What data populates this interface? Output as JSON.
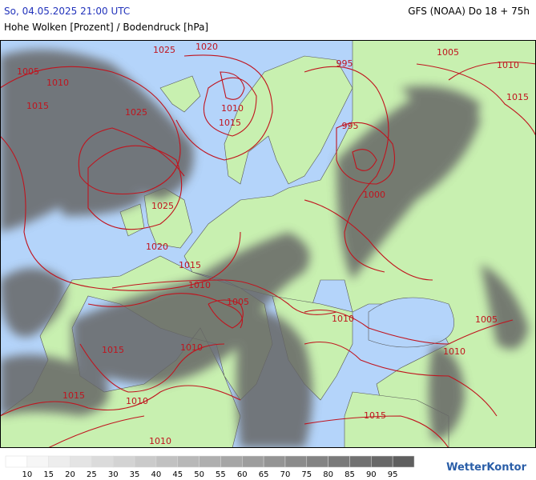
{
  "header": {
    "datetime": "So, 04.05.2025 21:00 UTC",
    "model": "GFS (NOAA) Do 18 + 75h",
    "subtitle": "Hohe Wolken [Prozent] / Bodendruck [hPa]"
  },
  "map": {
    "isobar_labels": [
      "1025",
      "1020",
      "1005",
      "1010",
      "1015",
      "1025",
      "1010",
      "1015",
      "1025",
      "1020",
      "1015",
      "1010",
      "1005",
      "995",
      "995",
      "1000",
      "1005",
      "1010",
      "1015",
      "1010",
      "1005",
      "1010",
      "1015",
      "1010",
      "1015",
      "1010",
      "1010",
      "1015"
    ]
  },
  "legend": {
    "ticks": [
      "10",
      "15",
      "20",
      "25",
      "30",
      "35",
      "40",
      "45",
      "50",
      "55",
      "60",
      "65",
      "70",
      "75",
      "80",
      "85",
      "90",
      "95"
    ]
  },
  "logo": "WetterKontor"
}
